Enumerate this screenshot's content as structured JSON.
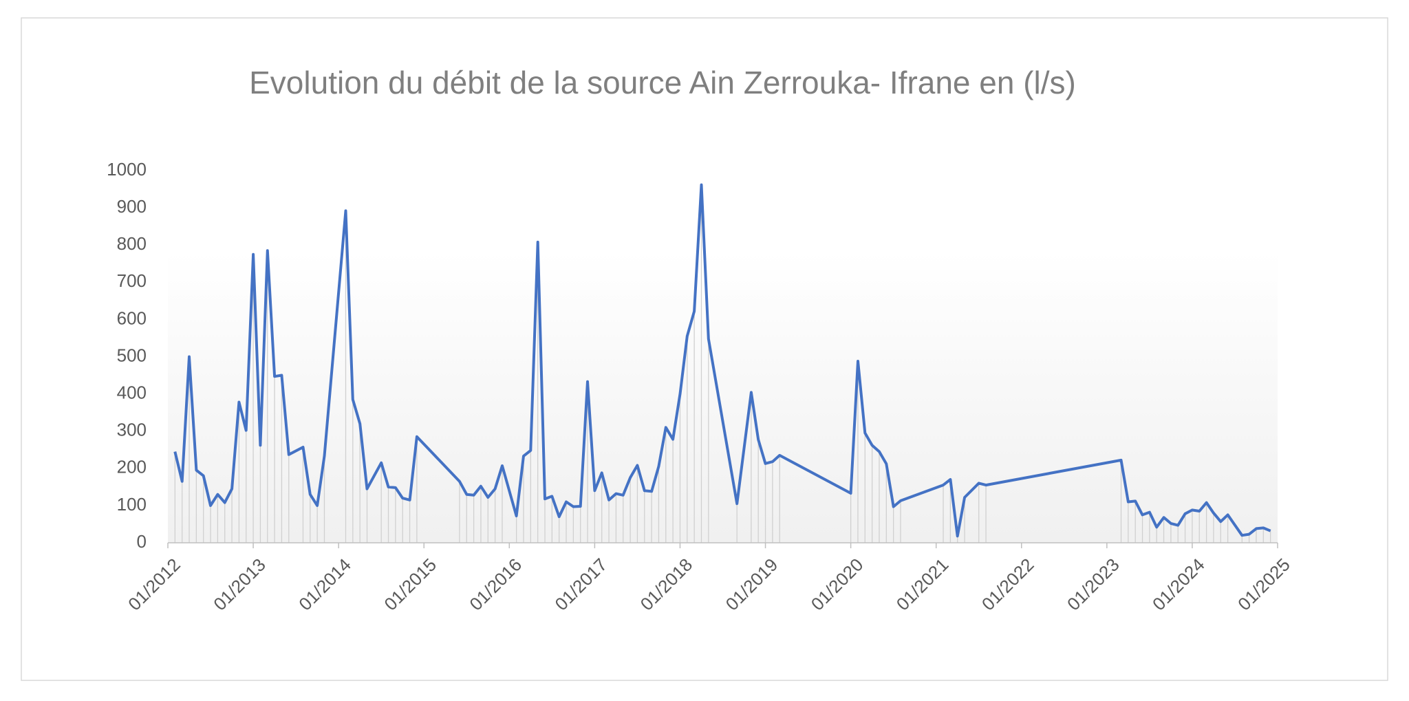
{
  "chart_data": {
    "type": "line",
    "title": "Evolution du débit de la source Ain Zerrouka- Ifrane en (l/s)",
    "color": "#4472c4",
    "grid": false,
    "x": [
      "2012-02",
      "2012-03",
      "2012-04",
      "2012-05",
      "2012-06",
      "2012-07",
      "2012-08",
      "2012-09",
      "2012-10",
      "2012-11",
      "2012-12",
      "2013-01",
      "2013-02",
      "2013-03",
      "2013-04",
      "2013-05",
      "2013-06",
      "2013-08",
      "2013-09",
      "2013-10",
      "2013-11",
      "2014-02",
      "2014-03",
      "2014-04",
      "2014-05",
      "2014-07",
      "2014-08",
      "2014-09",
      "2014-10",
      "2014-11",
      "2014-12",
      "2015-06",
      "2015-07",
      "2015-08",
      "2015-09",
      "2015-10",
      "2015-11",
      "2015-12",
      "2016-02",
      "2016-03",
      "2016-04",
      "2016-05",
      "2016-06",
      "2016-07",
      "2016-08",
      "2016-09",
      "2016-10",
      "2016-11",
      "2016-12",
      "2017-01",
      "2017-02",
      "2017-03",
      "2017-04",
      "2017-05",
      "2017-06",
      "2017-07",
      "2017-08",
      "2017-09",
      "2017-10",
      "2017-11",
      "2017-12",
      "2018-01",
      "2018-02",
      "2018-03",
      "2018-04",
      "2018-05",
      "2018-09",
      "2018-11",
      "2018-12",
      "2019-01",
      "2019-02",
      "2019-03",
      "2020-01",
      "2020-02",
      "2020-03",
      "2020-04",
      "2020-05",
      "2020-06",
      "2020-07",
      "2020-08",
      "2021-02",
      "2021-03",
      "2021-04",
      "2021-05",
      "2021-07",
      "2021-08",
      "2023-03",
      "2023-04",
      "2023-05",
      "2023-06",
      "2023-07",
      "2023-08",
      "2023-09",
      "2023-10",
      "2023-11",
      "2023-12",
      "2024-01",
      "2024-02",
      "2024-03",
      "2024-04",
      "2024-05",
      "2024-06",
      "2024-08",
      "2024-09",
      "2024-10",
      "2024-11",
      "2024-12"
    ],
    "values": [
      245,
      165,
      500,
      195,
      180,
      100,
      130,
      108,
      145,
      378,
      302,
      775,
      262,
      785,
      447,
      450,
      237,
      257,
      130,
      100,
      233,
      892,
      385,
      320,
      145,
      215,
      150,
      148,
      120,
      115,
      285,
      165,
      130,
      128,
      152,
      122,
      145,
      207,
      72,
      233,
      248,
      808,
      118,
      125,
      70,
      110,
      97,
      98,
      433,
      140,
      188,
      115,
      132,
      128,
      175,
      208,
      140,
      138,
      205,
      310,
      278,
      400,
      555,
      622,
      962,
      548,
      105,
      404,
      277,
      213,
      218,
      235,
      133,
      488,
      295,
      262,
      245,
      212,
      97,
      113,
      155,
      170,
      18,
      122,
      160,
      155,
      222,
      110,
      112,
      75,
      82,
      42,
      68,
      52,
      47,
      78,
      88,
      85,
      108,
      80,
      57,
      75,
      20,
      23,
      38,
      40,
      32
    ],
    "xlim": [
      "2012-01",
      "2025-01"
    ],
    "xticks": [
      {
        "value": "2012-01",
        "label": "01/2012"
      },
      {
        "value": "2013-01",
        "label": "01/2013"
      },
      {
        "value": "2014-01",
        "label": "01/2014"
      },
      {
        "value": "2015-01",
        "label": "01/2015"
      },
      {
        "value": "2016-01",
        "label": "01/2016"
      },
      {
        "value": "2017-01",
        "label": "01/2017"
      },
      {
        "value": "2018-01",
        "label": "01/2018"
      },
      {
        "value": "2019-01",
        "label": "01/2019"
      },
      {
        "value": "2020-01",
        "label": "01/2020"
      },
      {
        "value": "2021-01",
        "label": "01/2021"
      },
      {
        "value": "2022-01",
        "label": "01/2022"
      },
      {
        "value": "2023-01",
        "label": "01/2023"
      },
      {
        "value": "2024-01",
        "label": "01/2024"
      },
      {
        "value": "2025-01",
        "label": "01/2025"
      }
    ],
    "ylim": [
      0,
      1000
    ],
    "yticks": [
      0,
      100,
      200,
      300,
      400,
      500,
      600,
      700,
      800,
      900,
      1000
    ]
  }
}
